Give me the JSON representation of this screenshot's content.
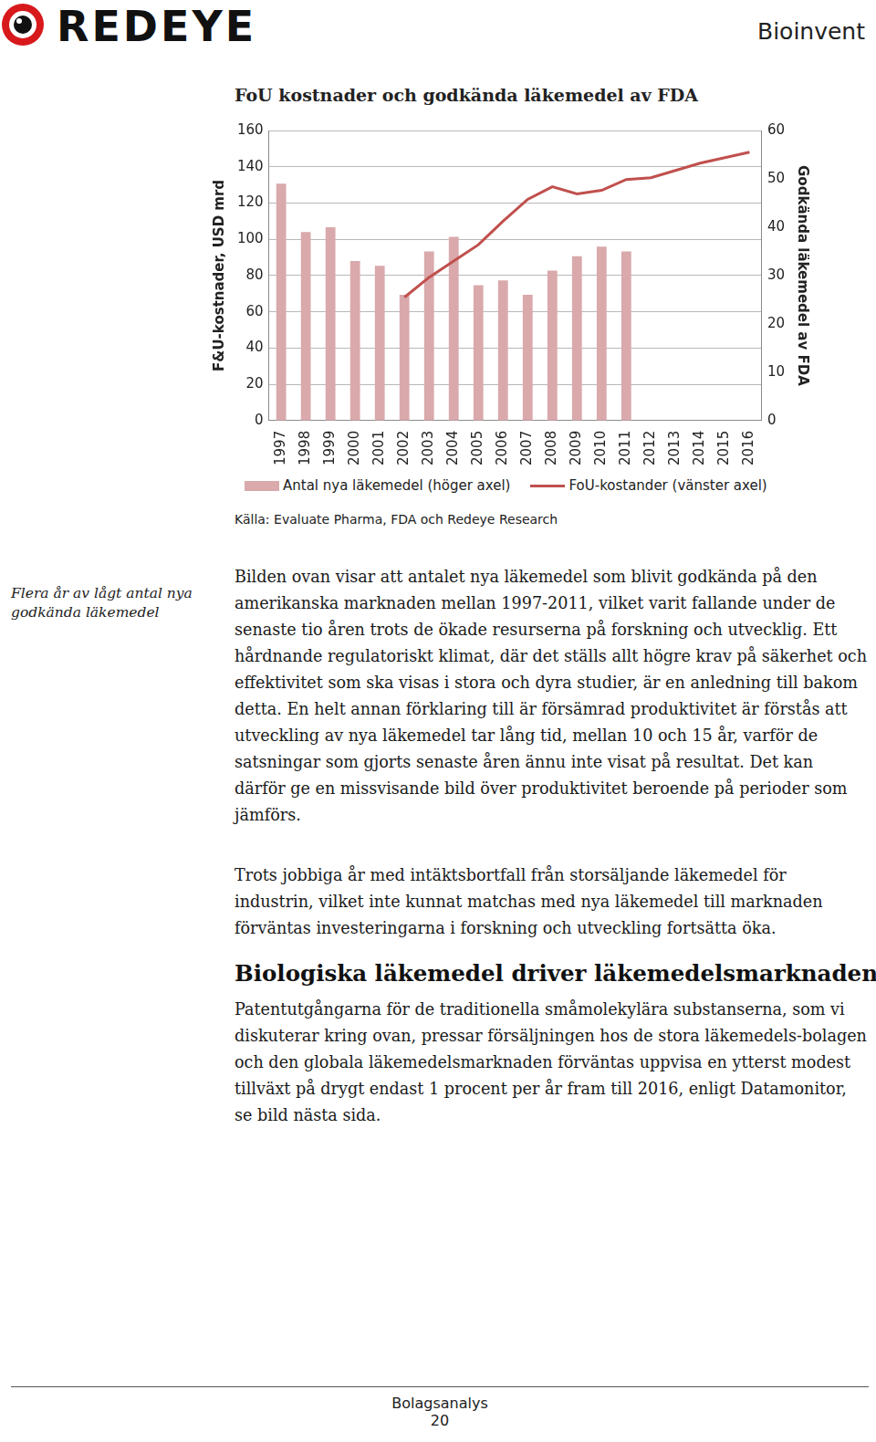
{
  "header": {
    "logo": "REDEYE",
    "company": "Bioinvent"
  },
  "chart_data": {
    "type": "bar",
    "title": "FoU kostnader och godkända läkemedel av FDA",
    "y_label": "F&U-kostnader, USD mrd",
    "y2_label": "Godkända läkemedel av FDA",
    "categories": [
      "1997",
      "1998",
      "1999",
      "2000",
      "2001",
      "2002",
      "2003",
      "2004",
      "2005",
      "2006",
      "2007",
      "2008",
      "2009",
      "2010",
      "2011",
      "2012",
      "2013",
      "2014",
      "2015",
      "2016"
    ],
    "series": [
      {
        "name": "Antal nya läkemedel (höger axel)",
        "type": "bar",
        "axis": "y2",
        "color": "#d9a9ac",
        "values": [
          49,
          39,
          40,
          33,
          32,
          26,
          35,
          38,
          28,
          29,
          26,
          31,
          34,
          36,
          35,
          null,
          null,
          null,
          null,
          null
        ]
      },
      {
        "name": "FoU-kostander (vänster axel)",
        "type": "line",
        "axis": "y",
        "color": "#c0504d",
        "values": [
          null,
          null,
          null,
          null,
          null,
          68,
          79,
          88,
          97,
          110,
          122,
          129,
          125,
          127,
          133,
          134,
          138,
          142,
          145,
          148
        ]
      }
    ],
    "ylim": [
      0,
      160
    ],
    "yticks": [
      0,
      20,
      40,
      60,
      80,
      100,
      120,
      140,
      160
    ],
    "y2lim": [
      0,
      60
    ],
    "y2ticks": [
      0,
      10,
      20,
      30,
      40,
      50,
      60
    ],
    "grid": true,
    "legend": "bottom",
    "source": "Källa: Evaluate Pharma, FDA och Redeye Research"
  },
  "side_note": "Flera år av lågt antal nya godkända läkemedel",
  "paragraphs": [
    "Bilden ovan visar att antalet nya läkemedel som blivit godkända på den amerikanska marknaden mellan 1997-2011, vilket varit fallande under de senaste tio åren trots de ökade resurserna på forskning och utvecklig. Ett hårdnande regulatoriskt klimat, där det ställs allt högre krav på säkerhet och effektivitet som ska visas i stora och dyra studier, är en anledning till bakom detta. En helt annan förklaring till är försämrad produktivitet är förstås att utveckling av nya läkemedel tar lång tid, mellan 10 och 15 år, varför de satsningar som gjorts senaste åren ännu inte visat på resultat. Det kan därför ge en missvisande bild över produktivitet beroende på perioder som jämförs.",
    "Trots jobbiga år med intäktsbortfall från storsäljande läkemedel för industrin, vilket inte kunnat matchas med nya läkemedel till marknaden förväntas investeringarna i forskning och utveckling fortsätta öka."
  ],
  "heading": "Biologiska läkemedel driver läkemedelsmarknaden",
  "paragraphs_after_heading": [
    "Patentutgångarna för de traditionella småmolekylära substanserna, som vi diskuterar kring ovan, pressar försäljningen hos de stora läkemedels-bolagen och den globala läkemedelsmarknaden förväntas uppvisa en ytterst modest tillväxt på drygt endast 1 procent per år fram till 2016, enligt Datamonitor, se bild nästa sida."
  ],
  "footer": {
    "label": "Bolagsanalys",
    "page": 20
  }
}
